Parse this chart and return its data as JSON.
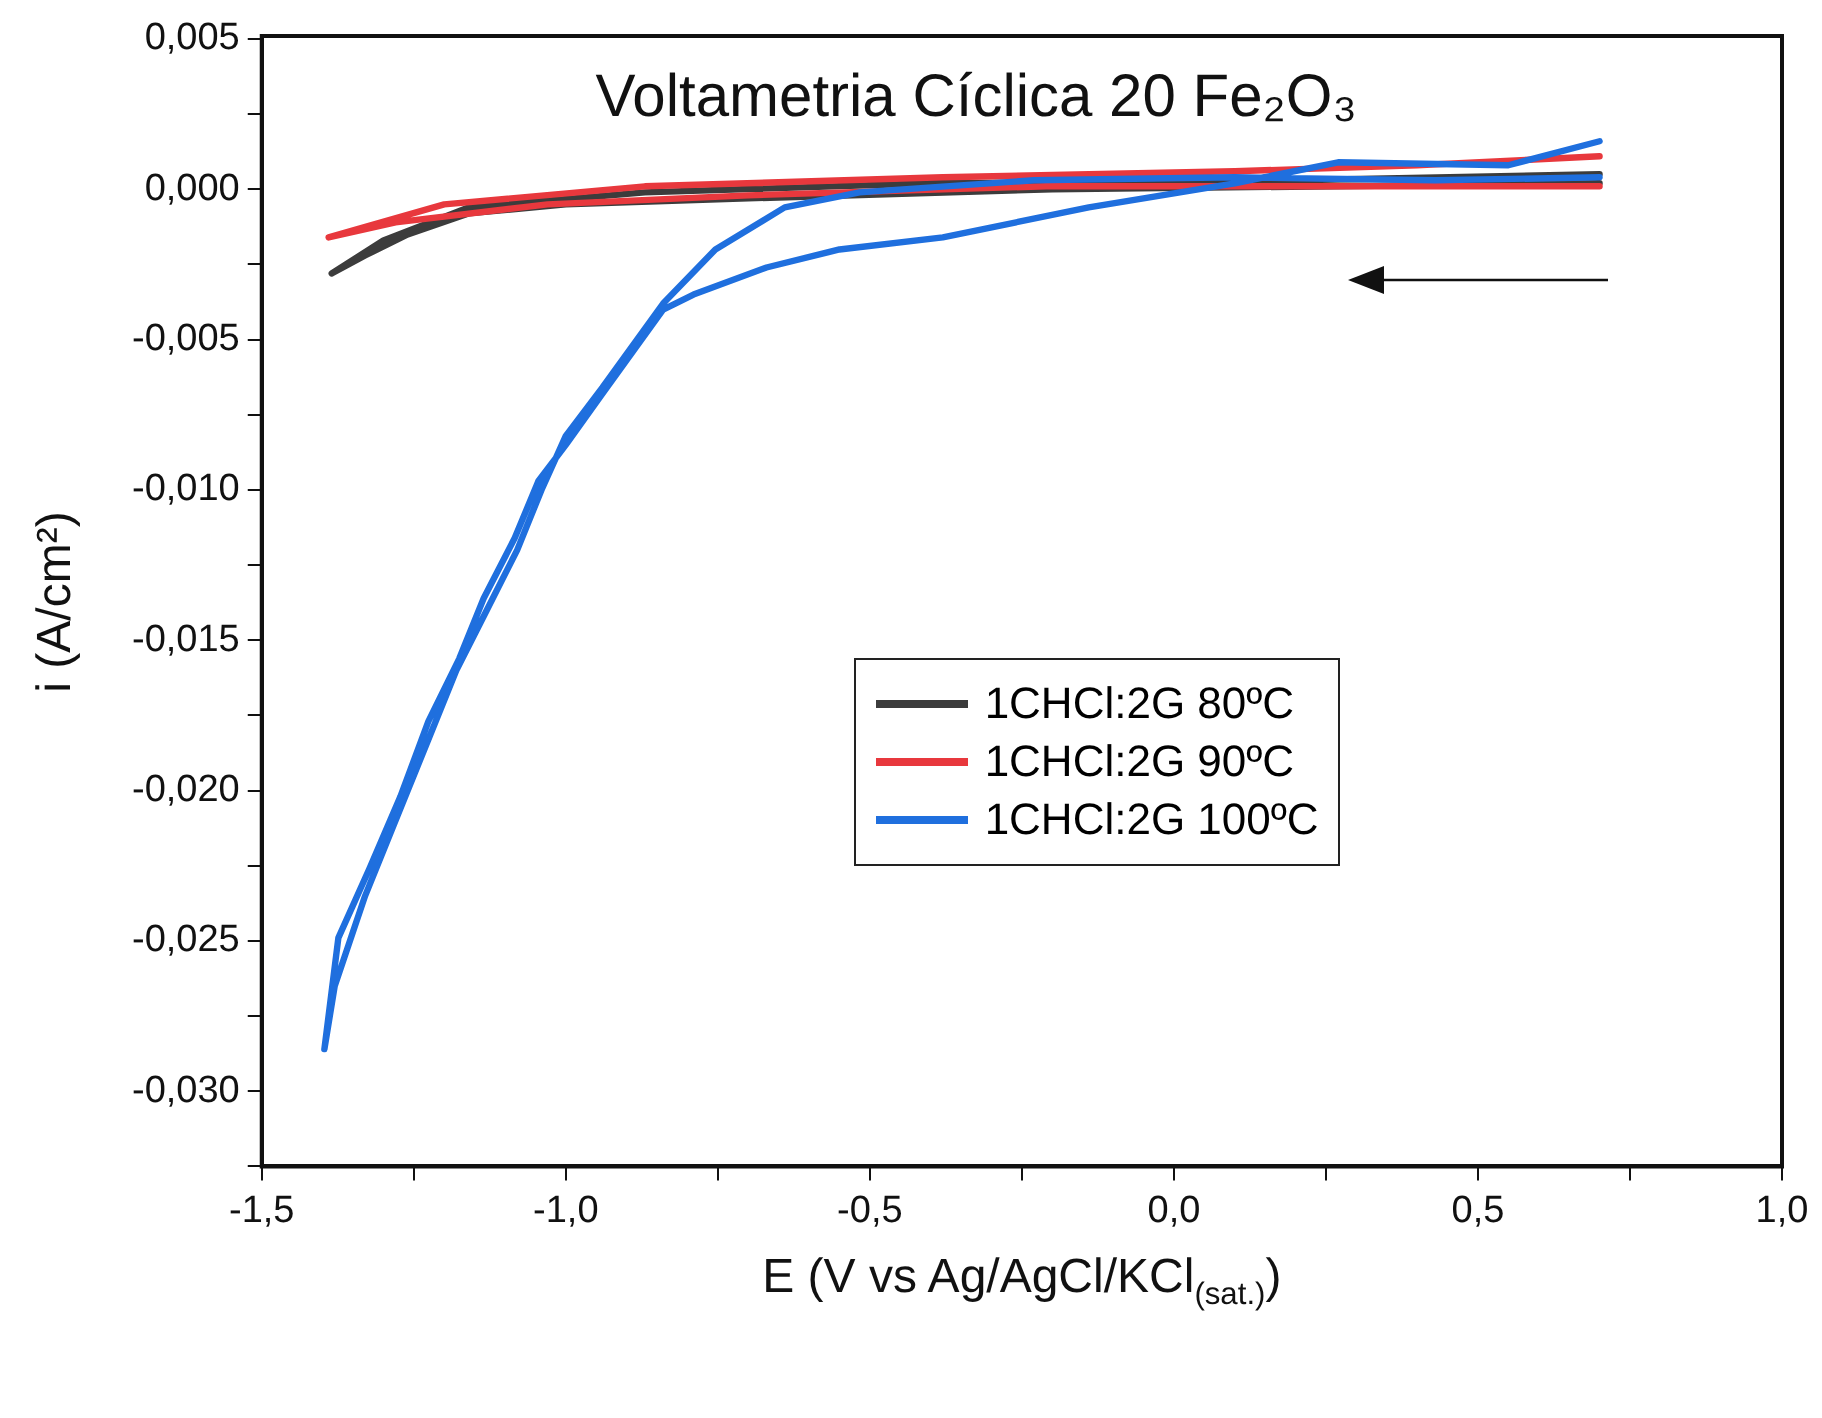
{
  "chart_data": {
    "type": "line",
    "title": "Voltametria Cíclica 20 Fe₂O₃",
    "xlabel": "E (V vs Ag/AgCl/KCl$_{(sat.)}$)",
    "ylabel": "i (A/cm²)",
    "xlim": [
      -1.5,
      1.0
    ],
    "xticks": [
      {
        "value": -1.5,
        "label": "-1,5"
      },
      {
        "value": -1.25,
        "label": null
      },
      {
        "value": -1.0,
        "label": "-1,0"
      },
      {
        "value": -0.75,
        "label": null
      },
      {
        "value": -0.5,
        "label": "-0,5"
      },
      {
        "value": -0.25,
        "label": null
      },
      {
        "value": 0,
        "label": "0,0"
      },
      {
        "value": 0.25,
        "label": null
      },
      {
        "value": 0.5,
        "label": "0,5"
      },
      {
        "value": 0.75,
        "label": null
      },
      {
        "value": 1.0,
        "label": "1,0"
      }
    ],
    "ylim": [
      -0.0325,
      0.0051
    ],
    "yticks": [
      {
        "value": -0.0325,
        "label": null
      },
      {
        "value": -0.03,
        "label": "-0,030"
      },
      {
        "value": -0.0275,
        "label": null
      },
      {
        "value": -0.025,
        "label": "-0,025"
      },
      {
        "value": -0.0225,
        "label": null
      },
      {
        "value": -0.02,
        "label": "-0,020"
      },
      {
        "value": -0.0175,
        "label": null
      },
      {
        "value": -0.015,
        "label": "-0,015"
      },
      {
        "value": -0.0125,
        "label": null
      },
      {
        "value": -0.01,
        "label": "-0,010"
      },
      {
        "value": -0.0075,
        "label": null
      },
      {
        "value": -0.005,
        "label": "-0,005"
      },
      {
        "value": -0.0025,
        "label": null
      },
      {
        "value": 0,
        "label": "0,000"
      },
      {
        "value": 0.0025,
        "label": null
      },
      {
        "value": 0.005,
        "label": "0,005"
      }
    ],
    "legend": "center",
    "marker": "none",
    "line_style": "solid",
    "series": [
      {
        "name": "1CHCl:2G 80ºC",
        "color": "#3c3c3c",
        "x": [
          0.7,
          0.3,
          -0.2,
          -0.7,
          -1.0,
          -1.16,
          -1.26,
          -1.33,
          -1.385,
          -1.3,
          -1.16,
          -0.87,
          -0.4,
          0.2,
          0.7
        ],
        "values": [
          0.0002,
          null,
          0.0,
          -0.0003,
          -0.0005,
          -0.0008,
          -0.0015,
          -0.0022,
          -0.0028,
          -0.0017,
          -0.0006,
          -0.0001,
          0.0002,
          0.0003,
          0.0005
        ]
      },
      {
        "name": "1CHCl:2G 90ºC",
        "color": "#e8383d",
        "x": [
          0.7,
          0.4,
          0.1,
          -0.38,
          -0.87,
          -1.2,
          -1.39,
          -1.28,
          -1.03,
          -0.7,
          -0.21,
          0.28,
          0.7
        ],
        "values": [
          0.0011,
          0.0008,
          0.0006,
          0.0004,
          0.0001,
          -0.0005,
          -0.0016,
          -0.0011,
          -0.0005,
          -0.0002,
          0.0001,
          0.0001,
          0.0001
        ]
      },
      {
        "name": "1CHCl:2G 100ºC",
        "color": "#1f6fde",
        "x": [
          0.7,
          0.55,
          0.27,
          0.1,
          -0.14,
          -0.38,
          -0.55,
          -0.67,
          -0.79,
          -0.84,
          -0.94,
          -1.0,
          -1.045,
          -1.084,
          -1.135,
          -1.175,
          -1.226,
          -1.272,
          -1.323,
          -1.374,
          -1.397,
          -1.38,
          -1.33,
          -1.28,
          -1.23,
          -1.18,
          -1.13,
          -1.08,
          -1.04,
          -1.0,
          -0.94,
          -0.84,
          -0.754,
          -0.64,
          -0.517,
          -0.23,
          0.1,
          0.43,
          0.7
        ],
        "values": [
          0.0016,
          0.0008,
          0.0009,
          0.0002,
          -0.0006,
          -0.0016,
          -0.002,
          -0.0026,
          -0.0035,
          -0.004,
          -0.0068,
          -0.0085,
          -0.0097,
          -0.0116,
          -0.0136,
          -0.0156,
          -0.0177,
          -0.0202,
          -0.0226,
          -0.0249,
          -0.0286,
          -0.0265,
          -0.0235,
          -0.021,
          -0.0185,
          -0.016,
          -0.014,
          -0.012,
          -0.01,
          -0.0082,
          -0.0066,
          -0.0038,
          -0.002,
          -0.0006,
          -0.0001,
          0.0003,
          0.0004,
          0.0003,
          0.0004
        ]
      }
    ]
  }
}
